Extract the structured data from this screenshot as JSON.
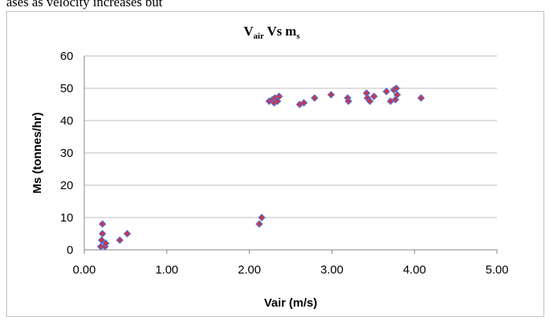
{
  "document": {
    "caption_fragment": "ases as velocity increases but"
  },
  "chart_data": {
    "type": "scatter",
    "title": {
      "main": "V",
      "main_sub": "air",
      "connector": " Vs m",
      "connector_sub": "s"
    },
    "xlabel": "Vair (m/s)",
    "ylabel": "Ms (tonnes/hr)",
    "xlim": [
      0,
      5
    ],
    "ylim": [
      0,
      60
    ],
    "xticks": [
      "0.00",
      "1.00",
      "2.00",
      "3.00",
      "4.00",
      "5.00"
    ],
    "yticks": [
      "0",
      "10",
      "20",
      "30",
      "40",
      "50",
      "60"
    ],
    "grid": "horizontal",
    "legend": "none",
    "marker": {
      "shape": "diamond",
      "fill": "#cc3344",
      "stroke": "#5b6fd1"
    },
    "points": [
      {
        "x": 0.2,
        "y": 1
      },
      {
        "x": 0.21,
        "y": 3
      },
      {
        "x": 0.22,
        "y": 8
      },
      {
        "x": 0.22,
        "y": 5
      },
      {
        "x": 0.25,
        "y": 1
      },
      {
        "x": 0.26,
        "y": 2
      },
      {
        "x": 0.43,
        "y": 3
      },
      {
        "x": 0.52,
        "y": 5
      },
      {
        "x": 2.12,
        "y": 8
      },
      {
        "x": 2.15,
        "y": 10
      },
      {
        "x": 2.24,
        "y": 46
      },
      {
        "x": 2.28,
        "y": 46.5
      },
      {
        "x": 2.3,
        "y": 45.5
      },
      {
        "x": 2.31,
        "y": 47
      },
      {
        "x": 2.34,
        "y": 46
      },
      {
        "x": 2.36,
        "y": 47.5
      },
      {
        "x": 2.61,
        "y": 45
      },
      {
        "x": 2.66,
        "y": 45.5
      },
      {
        "x": 2.79,
        "y": 47
      },
      {
        "x": 2.99,
        "y": 48
      },
      {
        "x": 3.19,
        "y": 47
      },
      {
        "x": 3.2,
        "y": 46
      },
      {
        "x": 3.42,
        "y": 48.5
      },
      {
        "x": 3.43,
        "y": 47
      },
      {
        "x": 3.46,
        "y": 46
      },
      {
        "x": 3.51,
        "y": 47.5
      },
      {
        "x": 3.66,
        "y": 49
      },
      {
        "x": 3.71,
        "y": 46
      },
      {
        "x": 3.75,
        "y": 49.5
      },
      {
        "x": 3.77,
        "y": 46.5
      },
      {
        "x": 3.78,
        "y": 50
      },
      {
        "x": 3.79,
        "y": 48
      },
      {
        "x": 4.08,
        "y": 47
      }
    ]
  }
}
